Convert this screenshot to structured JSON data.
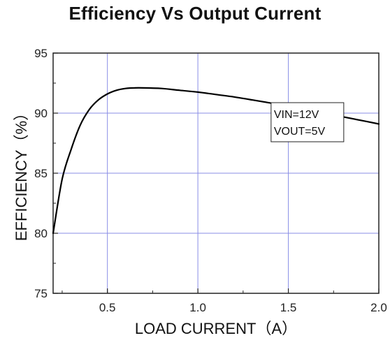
{
  "chart_data": {
    "type": "line",
    "title": "Efficiency Vs Output Current",
    "xlabel": "LOAD CURRENT（A）",
    "ylabel": "EFFICIENCY（%）",
    "xlim": [
      0.2,
      2.0
    ],
    "ylim": [
      75,
      95
    ],
    "x_ticks": [
      0.5,
      1.0,
      1.5,
      2.0
    ],
    "x_tick_labels": [
      "0.5",
      "1.0",
      "1.5",
      "2.0"
    ],
    "y_ticks": [
      75,
      80,
      85,
      90,
      95
    ],
    "y_tick_labels": [
      "75",
      "80",
      "85",
      "90",
      "95"
    ],
    "grid": true,
    "series": [
      {
        "x": [
          0.2,
          0.25,
          0.3,
          0.35,
          0.4,
          0.45,
          0.5,
          0.55,
          0.6,
          0.65,
          0.7,
          0.8,
          0.9,
          1.0,
          1.1,
          1.2,
          1.3,
          1.4,
          1.5,
          1.6,
          1.7,
          1.8,
          1.9,
          2.0
        ],
        "y": [
          80.0,
          84.5,
          87.0,
          89.0,
          90.3,
          91.1,
          91.6,
          91.9,
          92.05,
          92.1,
          92.1,
          92.05,
          91.9,
          91.75,
          91.55,
          91.35,
          91.1,
          90.85,
          90.6,
          90.3,
          90.0,
          89.7,
          89.4,
          89.1
        ],
        "color": "#000000"
      }
    ],
    "annotations": [
      {
        "lines": [
          "VIN=12V",
          "VOUT=5V"
        ],
        "x": 1.42,
        "y": 87.5
      }
    ],
    "colors": {
      "grid": "#8a8ee6",
      "axis": "#222222",
      "line": "#000000"
    }
  }
}
